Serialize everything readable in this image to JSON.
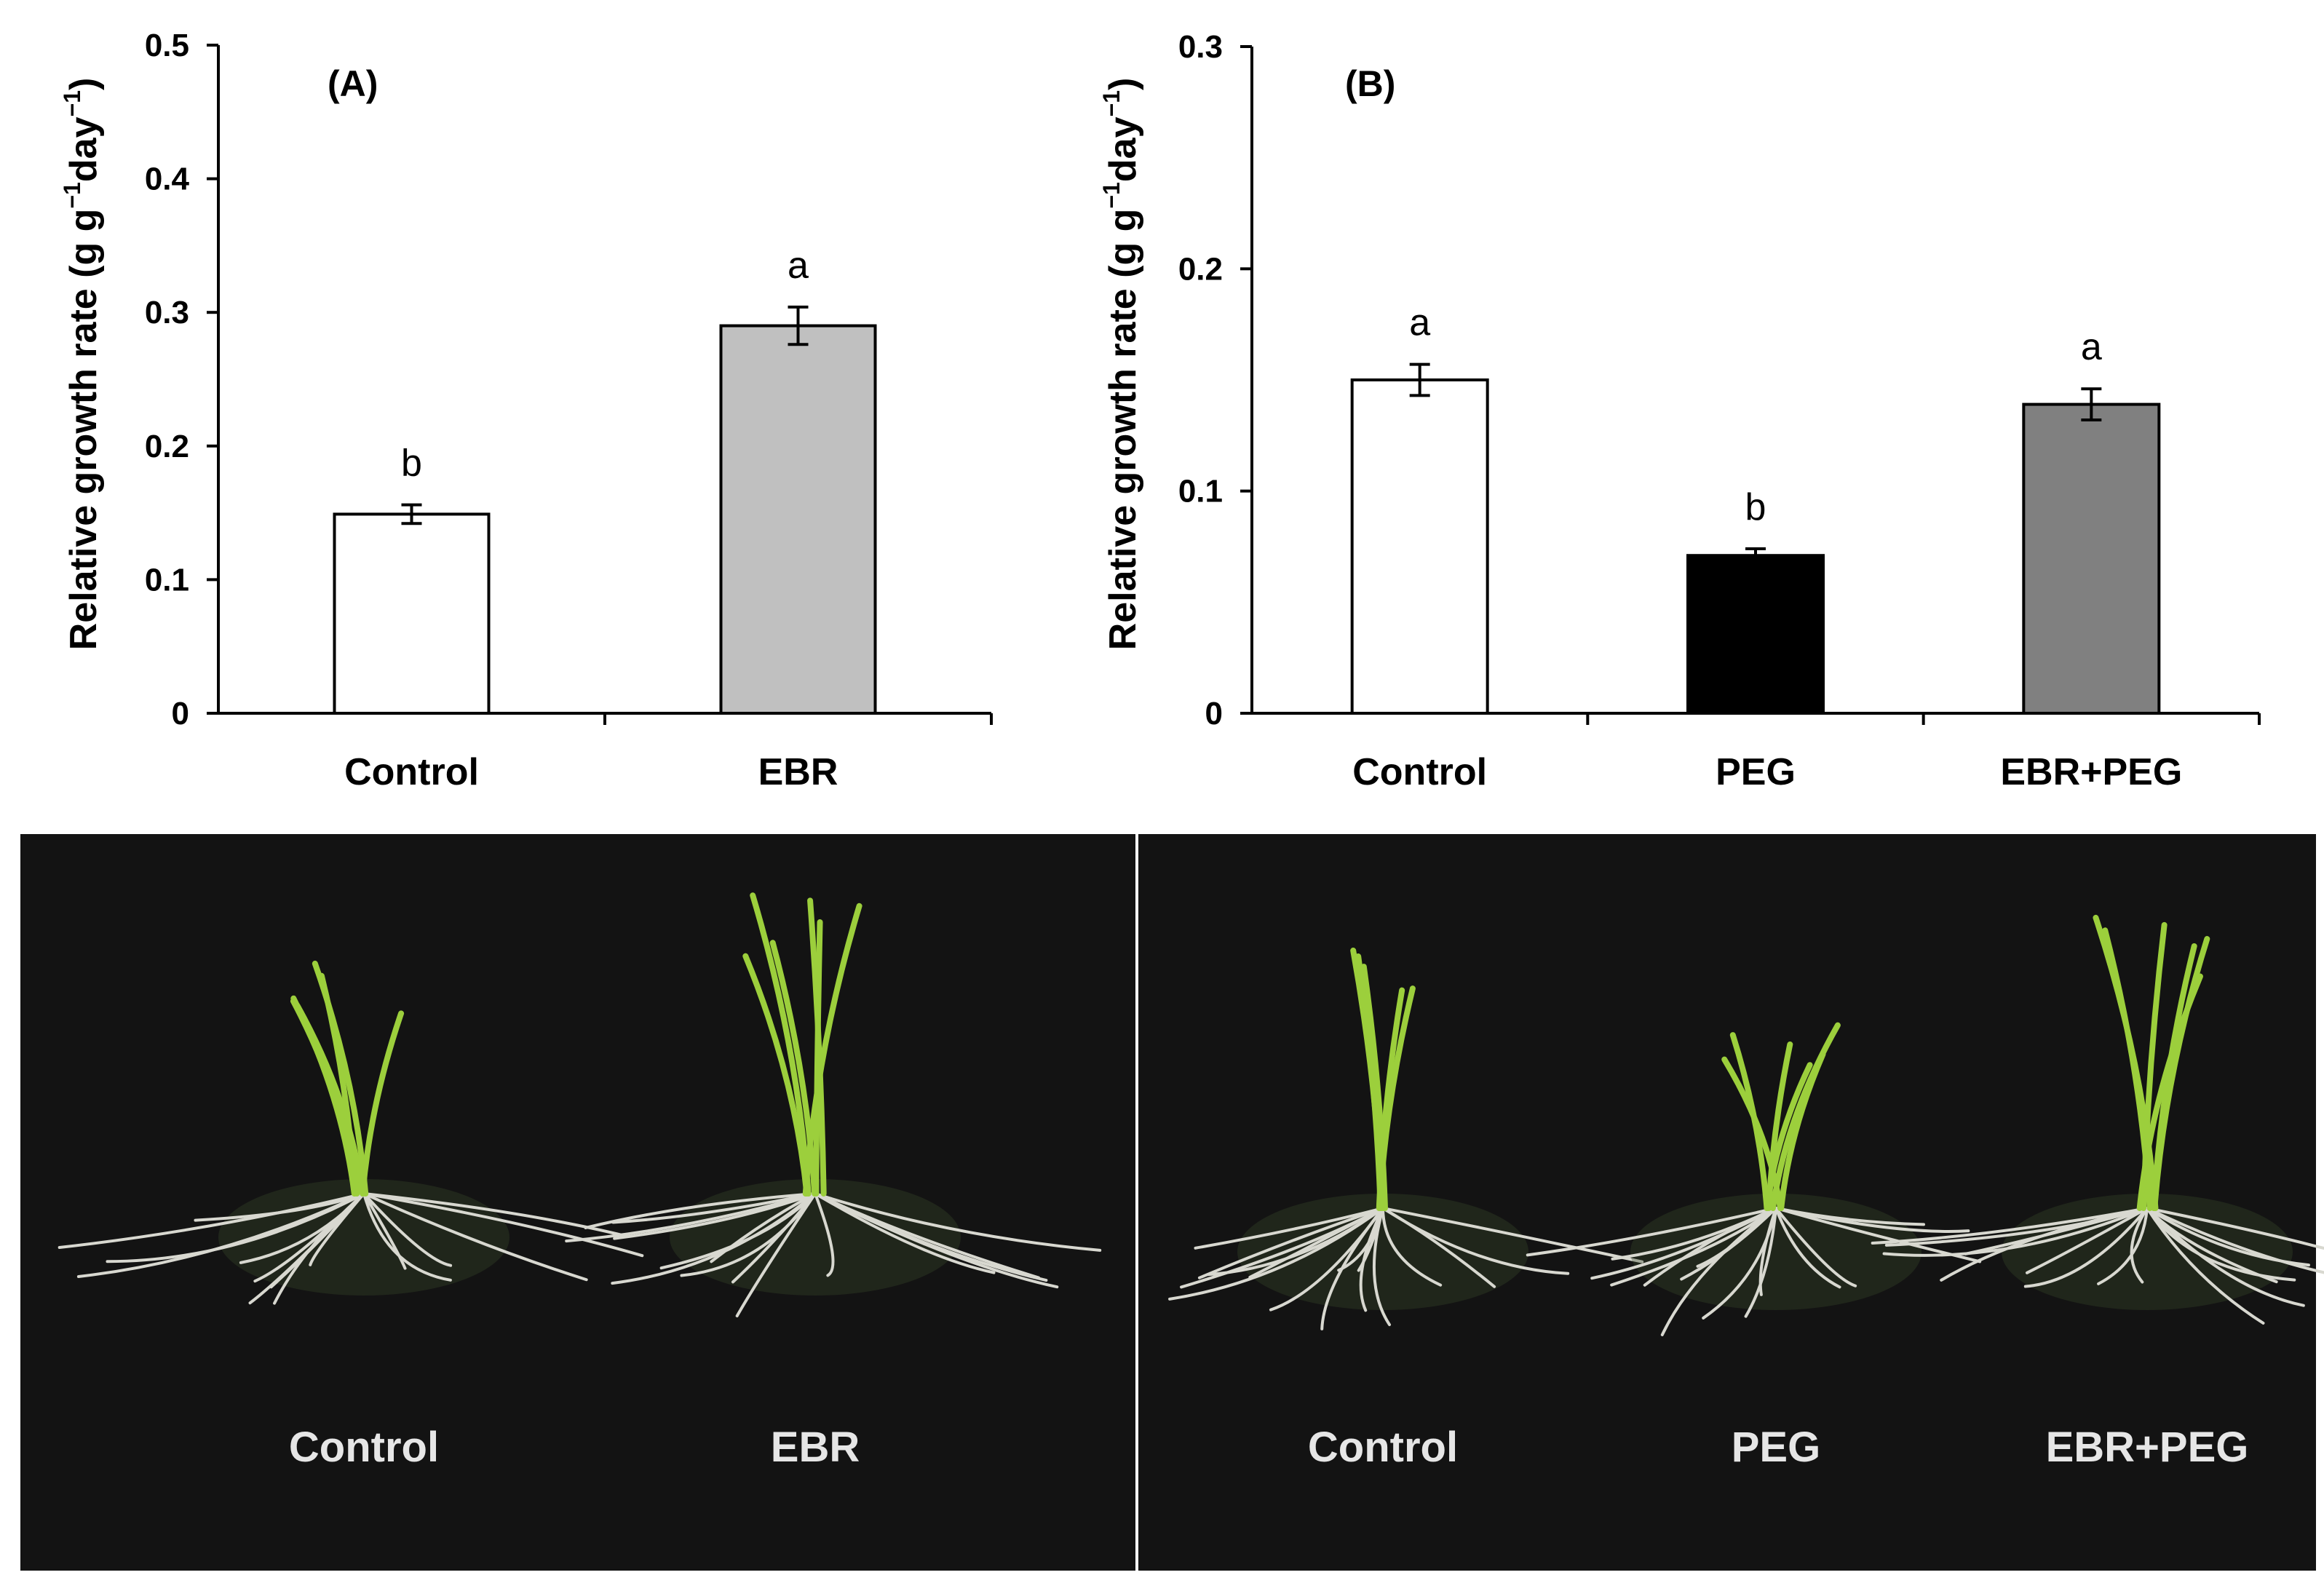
{
  "chart_data": [
    {
      "panel": "(A)",
      "type": "bar",
      "ylabel": "Relative growth rate (g g-1day-1)",
      "ylim": [
        0,
        0.5
      ],
      "yticks": [
        "0",
        "0.1",
        "0.2",
        "0.3",
        "0.4",
        "0.5"
      ],
      "categories": [
        "Control",
        "EBR"
      ],
      "values": [
        0.149,
        0.29
      ],
      "errors": [
        0.007,
        0.014
      ],
      "significance": [
        "b",
        "a"
      ],
      "colors": [
        "#ffffff",
        "#c0c0c0"
      ]
    },
    {
      "panel": "(B)",
      "type": "bar",
      "ylabel": "Relative growth rate (g g-1day-1)",
      "ylim": [
        0,
        0.3
      ],
      "yticks": [
        "0",
        "0.1",
        "0.2",
        "0.3"
      ],
      "categories": [
        "Control",
        "PEG",
        "EBR+PEG"
      ],
      "values": [
        0.15,
        0.071,
        0.139
      ],
      "errors": [
        0.007,
        0.003,
        0.007
      ],
      "significance": [
        "a",
        "b",
        "a"
      ],
      "colors": [
        "#ffffff",
        "#000000",
        "#808080"
      ]
    }
  ],
  "photos": [
    {
      "labels": [
        "Control",
        "EBR"
      ]
    },
    {
      "labels": [
        "Control",
        "PEG",
        "EBR+PEG"
      ]
    }
  ]
}
